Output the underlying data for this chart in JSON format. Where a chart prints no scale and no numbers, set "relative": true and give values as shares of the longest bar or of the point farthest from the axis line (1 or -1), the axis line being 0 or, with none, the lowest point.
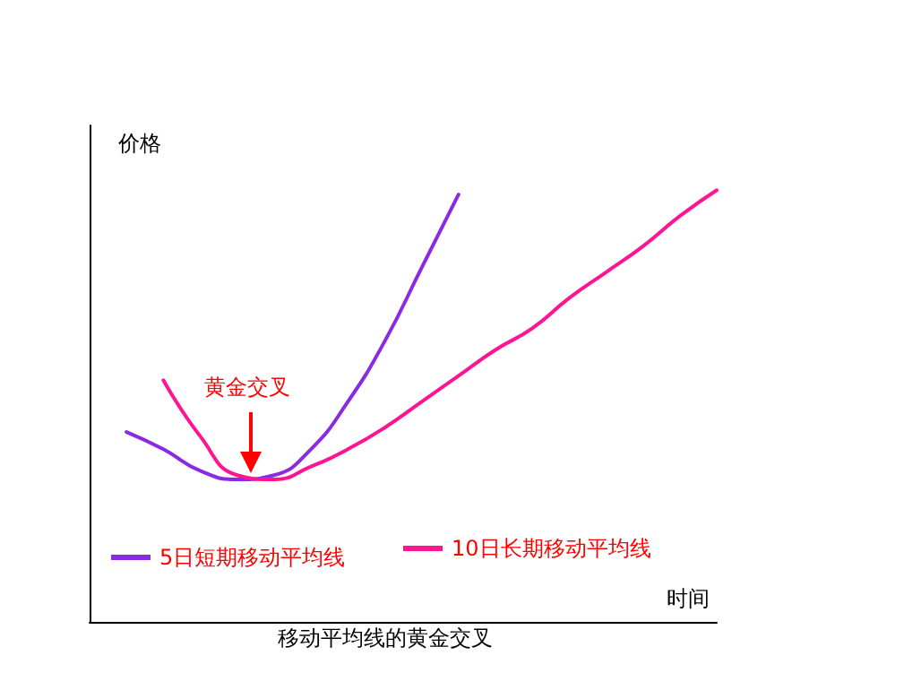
{
  "chart_data": {
    "type": "line",
    "title": "移动平均线的黄金交叉",
    "xlabel": "时间",
    "ylabel": "价格",
    "relative": true,
    "annotations": [
      "黄金交叉"
    ],
    "categories": [
      null,
      null,
      null,
      null,
      null,
      null,
      null,
      null,
      null,
      null,
      null,
      null,
      null,
      null,
      null,
      null,
      null,
      null
    ],
    "series": [
      {
        "name": "5日短期移动平均线",
        "color": "#8a2be2",
        "values": [
          null,
          0.44,
          0.4,
          0.35,
          0.33,
          0.34,
          0.4,
          0.51,
          0.65,
          0.82,
          0.99,
          null,
          null,
          null,
          null,
          null,
          null,
          null
        ]
      },
      {
        "name": "10日长期移动平均线",
        "color": "#ff1493",
        "values": [
          null,
          null,
          0.56,
          0.43,
          0.34,
          0.33,
          0.36,
          0.4,
          0.45,
          0.51,
          0.57,
          0.63,
          0.68,
          0.75,
          0.81,
          0.87,
          0.94,
          1
        ]
      }
    ],
    "marker": "none",
    "legend": "bottom",
    "grid": false
  }
}
